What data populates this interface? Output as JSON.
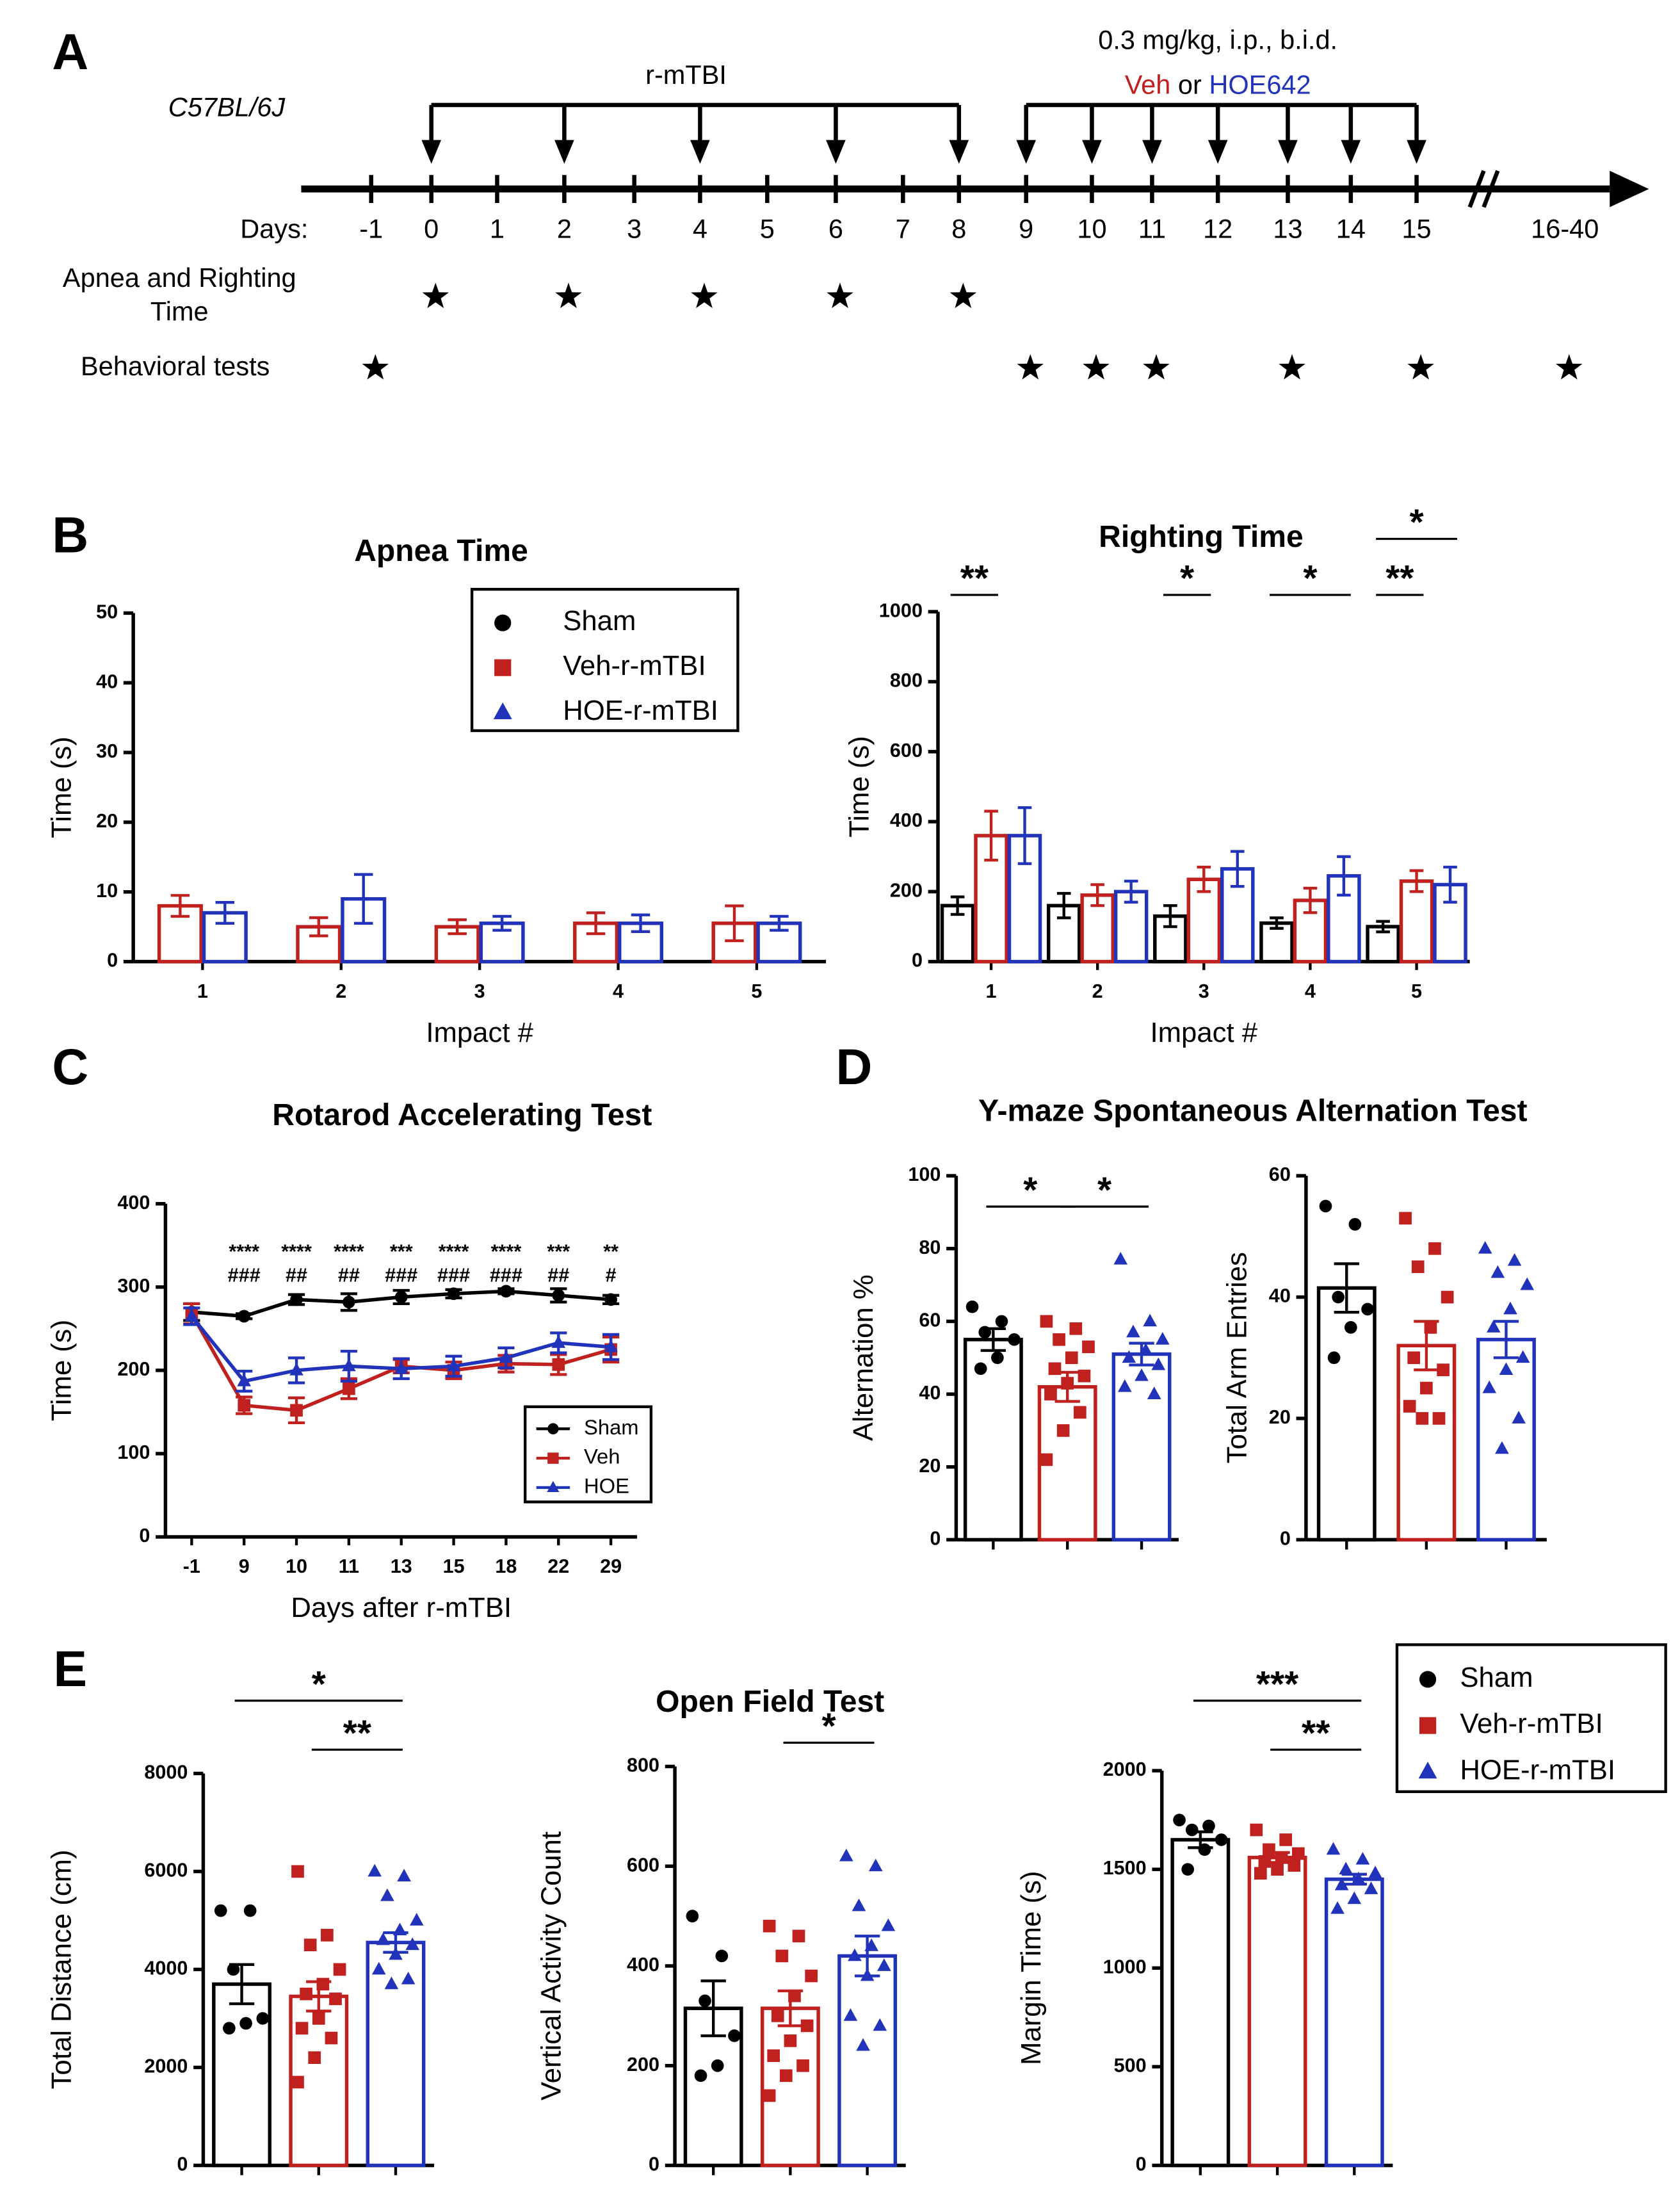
{
  "panel_labels": [
    "A",
    "B",
    "C",
    "D",
    "E"
  ],
  "timeline": {
    "strain": "C57BL/6J",
    "injury": "r-mTBI",
    "dose": "0.3 mg/kg, i.p., b.i.d.",
    "vehicle": "Veh",
    "or": "or",
    "drug": "HOE642",
    "days_label": "Days:",
    "days": [
      "-1",
      "0",
      "1",
      "2",
      "3",
      "4",
      "5",
      "6",
      "7",
      "8",
      "9",
      "10",
      "11",
      "12",
      "13",
      "14",
      "15",
      "16-40"
    ],
    "injury_days": [
      1,
      3,
      5,
      7,
      9
    ],
    "treatment_days": [
      10,
      11,
      12,
      13,
      14,
      15,
      16
    ],
    "rows": [
      {
        "label": [
          "Apnea and Righting",
          "Time"
        ],
        "days": [
          1,
          3,
          5,
          7,
          9
        ]
      },
      {
        "label": [
          "Behavioral tests"
        ],
        "days": [
          0,
          10,
          11,
          12,
          14,
          16,
          17
        ]
      }
    ]
  },
  "chart_data": [
    {
      "type": "bar",
      "title": "Apnea Time",
      "ylabel": "Time (s)",
      "xlabel": "Impact #",
      "categories": [
        "1",
        "2",
        "3",
        "4",
        "5"
      ],
      "ylim": [
        0,
        50
      ],
      "yticks": [
        0,
        10,
        20,
        30,
        40,
        50
      ],
      "legend": true,
      "series": [
        {
          "name": "Sham",
          "color": "#000000",
          "marker": "circle",
          "values": [
            null,
            null,
            null,
            null,
            null
          ],
          "errors": [
            null,
            null,
            null,
            null,
            null
          ]
        },
        {
          "name": "Veh-r-mTBI",
          "color": "#c0201e",
          "marker": "square",
          "values": [
            8,
            5,
            5,
            5.5,
            5.5
          ],
          "errors": [
            1.5,
            1.3,
            1,
            1.5,
            2.5
          ]
        },
        {
          "name": "HOE-r-mTBI",
          "color": "#2233bb",
          "marker": "triangle",
          "values": [
            7,
            9,
            5.5,
            5.5,
            5.5
          ],
          "errors": [
            1.5,
            3.5,
            1,
            1.2,
            1
          ]
        }
      ]
    },
    {
      "type": "bar",
      "title": "Righting Time",
      "ylabel": "Time (s)",
      "xlabel": "Impact #",
      "categories": [
        "1",
        "2",
        "3",
        "4",
        "5"
      ],
      "ylim": [
        0,
        1000
      ],
      "yticks": [
        0,
        200,
        400,
        600,
        800,
        1000
      ],
      "series": [
        {
          "color": "#000000",
          "marker": "circle",
          "values": [
            160,
            160,
            130,
            110,
            100
          ],
          "errors": [
            25,
            35,
            30,
            15,
            15
          ]
        },
        {
          "color": "#c0201e",
          "marker": "square",
          "values": [
            360,
            190,
            235,
            175,
            230
          ],
          "errors": [
            70,
            30,
            35,
            35,
            30
          ]
        },
        {
          "color": "#2233bb",
          "marker": "triangle",
          "values": [
            360,
            200,
            265,
            245,
            220
          ],
          "errors": [
            80,
            30,
            50,
            55,
            50
          ]
        }
      ],
      "significance": [
        {
          "label": "**",
          "category": 0,
          "from": 0,
          "to": 1
        },
        {
          "label": "*",
          "category": 2,
          "from": 0,
          "to": 1
        },
        {
          "label": "*",
          "category": 3,
          "from": 0,
          "to": 2
        },
        {
          "label": "**",
          "category": 4,
          "from": 0,
          "to": 1
        },
        {
          "label": "*",
          "category": 4,
          "from": 0,
          "to": 2
        }
      ]
    },
    {
      "type": "line",
      "title": "Rotarod Accelerating Test",
      "ylabel": "Time (s)",
      "xlabel": "Days after r-mTBI",
      "categories": [
        "-1",
        "9",
        "10",
        "11",
        "13",
        "15",
        "18",
        "22",
        "29"
      ],
      "ylim": [
        0,
        400
      ],
      "yticks": [
        0,
        100,
        200,
        300,
        400
      ],
      "legend": true,
      "series": [
        {
          "name": "Sham",
          "color": "#000000",
          "marker": "circle",
          "values": [
            270,
            265,
            285,
            282,
            288,
            292,
            295,
            290,
            285
          ],
          "errors": [
            10,
            3,
            6,
            10,
            8,
            5,
            3,
            8,
            5
          ]
        },
        {
          "name": "Veh",
          "color": "#c0201e",
          "marker": "square",
          "values": [
            268,
            158,
            152,
            178,
            205,
            200,
            208,
            207,
            225
          ],
          "errors": [
            12,
            10,
            15,
            12,
            8,
            10,
            10,
            12,
            15
          ]
        },
        {
          "name": "HOE",
          "color": "#2233bb",
          "marker": "triangle",
          "values": [
            265,
            187,
            200,
            205,
            202,
            205,
            215,
            233,
            228
          ],
          "errors": [
            10,
            12,
            15,
            18,
            12,
            12,
            12,
            12,
            15
          ]
        }
      ],
      "annotation_rows": [
        [
          null,
          "****",
          "****",
          "****",
          "***",
          "****",
          "****",
          "***",
          "**"
        ],
        [
          null,
          "###",
          "##",
          "##",
          "###",
          "###",
          "###",
          "##",
          "#"
        ]
      ]
    },
    {
      "type": "bar",
      "title": "Y-maze Spontaneous Alternation Test",
      "ylabel": "Alternation %",
      "ylim": [
        0,
        100
      ],
      "yticks": [
        0,
        20,
        40,
        60,
        80,
        100
      ],
      "series": [
        {
          "color": "#000000",
          "marker": "circle",
          "values": [
            55
          ],
          "errors": [
            3
          ],
          "points": [
            [
              64,
              60,
              57,
              55,
              50,
              47
            ]
          ]
        },
        {
          "color": "#c0201e",
          "marker": "square",
          "values": [
            42
          ],
          "errors": [
            4
          ],
          "points": [
            [
              60,
              58,
              55,
              53,
              50,
              47,
              45,
              43,
              40,
              35,
              30,
              22
            ]
          ]
        },
        {
          "color": "#2233bb",
          "marker": "triangle",
          "values": [
            51
          ],
          "errors": [
            3
          ],
          "points": [
            [
              77,
              60,
              57,
              55,
              52,
              50,
              48,
              45,
              42,
              40
            ]
          ]
        }
      ],
      "significance": [
        {
          "label": "*",
          "from": 0,
          "to": 1
        },
        {
          "label": "*",
          "from": 1,
          "to": 2
        }
      ]
    },
    {
      "type": "bar",
      "ylabel": "Total Arm Entries",
      "ylim": [
        0,
        60
      ],
      "yticks": [
        0,
        20,
        40,
        60
      ],
      "series": [
        {
          "color": "#000000",
          "marker": "circle",
          "values": [
            41.5
          ],
          "errors": [
            4
          ],
          "points": [
            [
              55,
              52,
              40,
              38,
              35,
              30
            ]
          ]
        },
        {
          "color": "#c0201e",
          "marker": "square",
          "values": [
            32
          ],
          "errors": [
            4
          ],
          "points": [
            [
              53,
              48,
              45,
              40,
              35,
              30,
              28,
              25,
              22,
              20,
              20
            ]
          ]
        },
        {
          "color": "#2233bb",
          "marker": "triangle",
          "values": [
            33
          ],
          "errors": [
            3
          ],
          "points": [
            [
              48,
              46,
              44,
              42,
              38,
              35,
              30,
              28,
              25,
              20,
              15
            ]
          ]
        }
      ]
    },
    {
      "type": "bar",
      "ylabel": "Total Distance (cm)",
      "ylim": [
        0,
        8000
      ],
      "yticks": [
        0,
        2000,
        4000,
        6000,
        8000
      ],
      "legend": true,
      "series": [
        {
          "name": "Sham",
          "color": "#000000",
          "marker": "circle",
          "values": [
            3700
          ],
          "errors": [
            400
          ],
          "points": [
            [
              5200,
              5200,
              4000,
              3000,
              2900,
              2800
            ]
          ]
        },
        {
          "name": "Veh-r-mTBI",
          "color": "#c0201e",
          "marker": "square",
          "values": [
            3450
          ],
          "errors": [
            300
          ],
          "points": [
            [
              6000,
              4700,
              4500,
              4000,
              3700,
              3500,
              3400,
              3000,
              2800,
              2600,
              2200,
              1700
            ]
          ]
        },
        {
          "name": "HOE-r-mTBI",
          "color": "#2233bb",
          "marker": "triangle",
          "values": [
            4550
          ],
          "errors": [
            200
          ],
          "points": [
            [
              6000,
              5900,
              5500,
              5000,
              4800,
              4600,
              4500,
              4300,
              4000,
              3800,
              3700
            ]
          ]
        }
      ],
      "significance": [
        {
          "label": "**",
          "from": 1,
          "to": 2
        },
        {
          "label": "*",
          "from": 0,
          "to": 2
        }
      ]
    },
    {
      "type": "bar",
      "title": "Open Field Test",
      "ylabel": "Vertical Activity Count",
      "ylim": [
        0,
        800
      ],
      "yticks": [
        0,
        200,
        400,
        600,
        800
      ],
      "series": [
        {
          "color": "#000000",
          "marker": "circle",
          "values": [
            315
          ],
          "errors": [
            55
          ],
          "points": [
            [
              500,
              420,
              330,
              260,
              200,
              180
            ]
          ]
        },
        {
          "color": "#c0201e",
          "marker": "square",
          "values": [
            315
          ],
          "errors": [
            35
          ],
          "points": [
            [
              480,
              460,
              420,
              380,
              340,
              300,
              280,
              250,
              220,
              200,
              180,
              140
            ]
          ]
        },
        {
          "color": "#2233bb",
          "marker": "triangle",
          "values": [
            420
          ],
          "errors": [
            40
          ],
          "points": [
            [
              620,
              600,
              520,
              480,
              440,
              420,
              400,
              380,
              300,
              280,
              240
            ]
          ]
        }
      ],
      "significance": [
        {
          "label": "*",
          "from": 1,
          "to": 2
        }
      ]
    },
    {
      "type": "bar",
      "ylabel": "Margin Time (s)",
      "ylim": [
        0,
        2000
      ],
      "yticks": [
        0,
        500,
        1000,
        1500,
        2000
      ],
      "series": [
        {
          "color": "#000000",
          "marker": "circle",
          "values": [
            1650
          ],
          "errors": [
            40
          ],
          "points": [
            [
              1750,
              1720,
              1700,
              1650,
              1600,
              1500
            ]
          ]
        },
        {
          "color": "#c0201e",
          "marker": "square",
          "values": [
            1560
          ],
          "errors": [
            25
          ],
          "points": [
            [
              1700,
              1650,
              1600,
              1580,
              1560,
              1540,
              1520,
              1500,
              1480
            ]
          ]
        },
        {
          "color": "#2233bb",
          "marker": "triangle",
          "values": [
            1450
          ],
          "errors": [
            25
          ],
          "points": [
            [
              1600,
              1550,
              1500,
              1480,
              1450,
              1420,
              1400,
              1350,
              1300
            ]
          ]
        }
      ],
      "significance": [
        {
          "label": "**",
          "from": 1,
          "to": 2
        },
        {
          "label": "***",
          "from": 0,
          "to": 2
        }
      ]
    }
  ]
}
